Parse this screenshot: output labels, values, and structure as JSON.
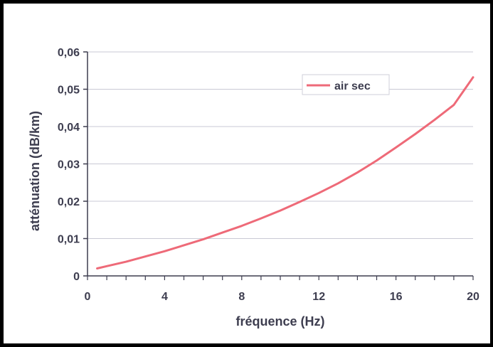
{
  "chart_data": {
    "type": "line",
    "title": "",
    "xlabel": "fréquence  (Hz)",
    "ylabel": "atténuation  (dB/km)",
    "xlim": [
      0,
      20
    ],
    "ylim": [
      0,
      0.06
    ],
    "x_ticks": [
      0,
      4,
      8,
      12,
      16,
      20
    ],
    "x_tick_labels": [
      "0",
      "4",
      "8",
      "12",
      "16",
      "20"
    ],
    "x_minor_step": 1,
    "y_ticks": [
      0,
      0.01,
      0.02,
      0.03,
      0.04,
      0.05,
      0.06
    ],
    "y_tick_labels": [
      "0",
      "0,01",
      "0,02",
      "0,03",
      "0,04",
      "0,05",
      "0,06"
    ],
    "grid": true,
    "legend_position": "top-right",
    "colors": {
      "series": "#ee6a78",
      "axis": "#3d3d4f",
      "grid": "#c9c9d4"
    },
    "series": [
      {
        "name": "air sec",
        "x": [
          0.5,
          1,
          2,
          3,
          4,
          5,
          6,
          7,
          8,
          9,
          10,
          11,
          12,
          13,
          14,
          15,
          16,
          17,
          18,
          19,
          20
        ],
        "values": [
          0.002,
          0.0026,
          0.0038,
          0.0052,
          0.0066,
          0.0082,
          0.0098,
          0.0116,
          0.0134,
          0.0154,
          0.0175,
          0.0198,
          0.0222,
          0.0248,
          0.0277,
          0.0309,
          0.0344,
          0.038,
          0.0418,
          0.0458,
          0.0532
        ]
      }
    ]
  }
}
